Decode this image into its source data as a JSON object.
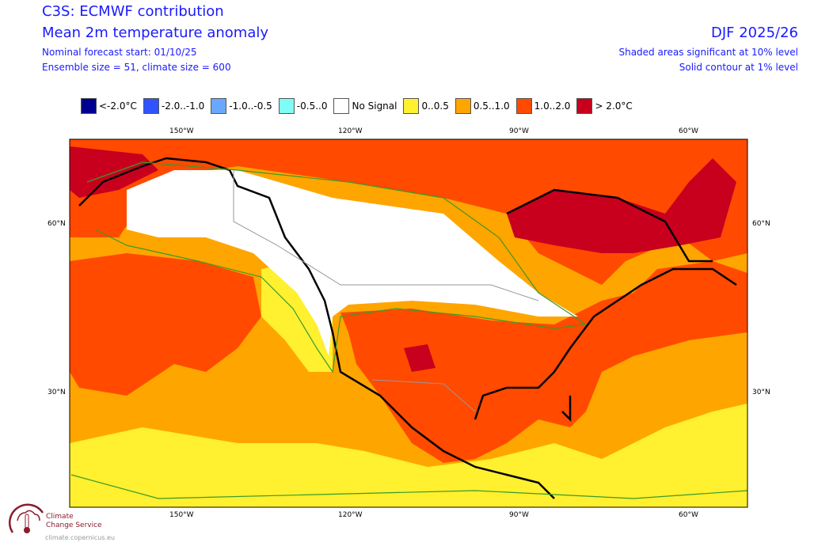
{
  "header": {
    "title": "C3S: ECMWF contribution",
    "subtitle": "Mean 2m temperature anomaly",
    "forecast_start": "Nominal forecast start: 01/10/25",
    "ensemble": "Ensemble size = 51, climate size = 600",
    "season": "DJF 2025/26",
    "note1": "Shaded areas significant at 10% level",
    "note2": "Solid contour at 1% level"
  },
  "legend": [
    {
      "label": "<-2.0°C",
      "color": "#000090"
    },
    {
      "label": "-2.0..-1.0",
      "color": "#2f54ff"
    },
    {
      "label": "-1.0..-0.5",
      "color": "#6aa8ff"
    },
    {
      "label": "-0.5..0",
      "color": "#7ffcf6"
    },
    {
      "label": "No Signal",
      "color": "#ffffff"
    },
    {
      "label": "0..0.5",
      "color": "#fff030"
    },
    {
      "label": "0.5..1.0",
      "color": "#ffa500"
    },
    {
      "label": "1.0..2.0",
      "color": "#ff4a00"
    },
    {
      "label": "> 2.0°C",
      "color": "#c8001e"
    }
  ],
  "axes": {
    "lon": [
      "150°W",
      "120°W",
      "90°W",
      "60°W"
    ],
    "lat": [
      "60°N",
      "30°N"
    ]
  },
  "logo": {
    "line1": "Climate",
    "line2": "Change Service",
    "url": "climate.copernicus.eu"
  }
}
